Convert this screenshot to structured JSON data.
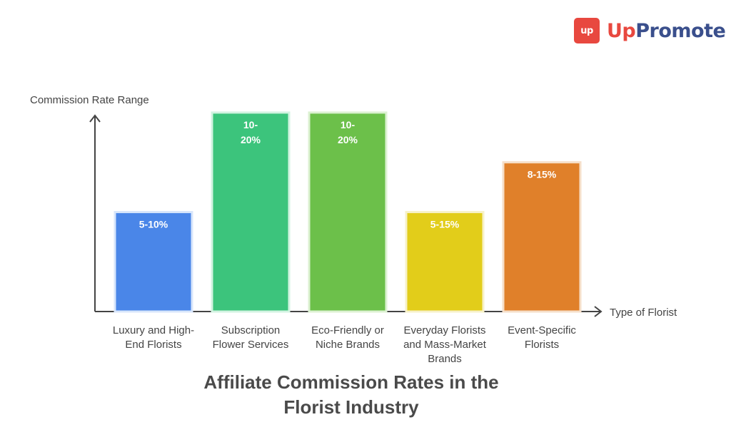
{
  "brand": {
    "badge": "up",
    "name_part1": "Up",
    "name_part2": "Promote",
    "colors": {
      "red": "#e8483f",
      "navy": "#3a4f8c"
    }
  },
  "chart_data": {
    "type": "bar",
    "title": "Affiliate Commission Rates in the\nFlorist Industry",
    "xlabel": "Type of Florist",
    "ylabel": "Commission Rate Range",
    "ylim": [
      0,
      22
    ],
    "grid": false,
    "categories": [
      "Luxury and High-\nEnd Florists",
      "Subscription\nFlower Services",
      "Eco-Friendly or\nNiche Brands",
      "Everyday Florists\nand Mass-Market\nBrands",
      "Event-Specific\nFlorists"
    ],
    "labels": [
      "5-10%",
      "10-\n20%",
      "10-\n20%",
      "5-15%",
      "8-15%"
    ],
    "values": [
      10,
      20,
      20,
      10,
      15
    ],
    "colors": [
      "#4a86e8",
      "#3cc47c",
      "#6cc04a",
      "#e2cd1a",
      "#e0802a"
    ],
    "border_colors": [
      "#d8e6fb",
      "#d2f3e1",
      "#dcf1d2",
      "#f7f1c8",
      "#f6dfc9"
    ]
  }
}
